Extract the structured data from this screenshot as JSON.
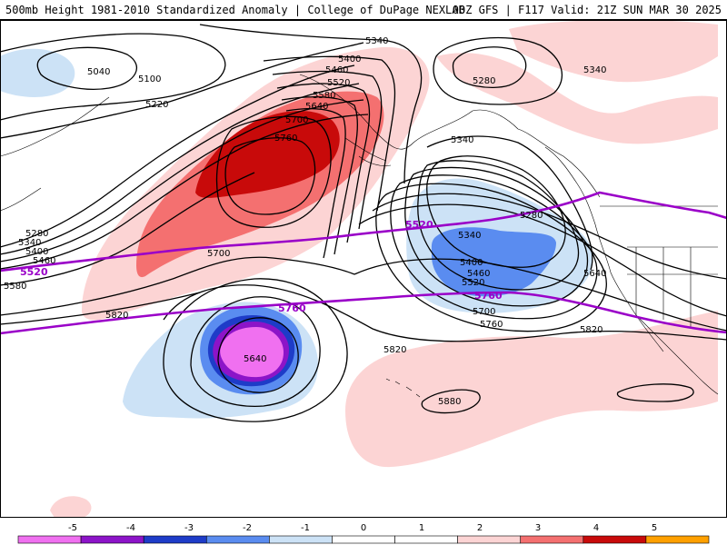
{
  "header": {
    "left_title": "500mb Height 1981-2010 Standardized Anomaly | College of DuPage NEXLAB",
    "right_title": "00Z GFS | F117 Valid: 21Z SUN MAR 30 2025"
  },
  "colors": {
    "anom_pos_1": "#fcd4d4",
    "anom_pos_2": "#f47070",
    "anom_pos_3": "#c80a0a",
    "anom_neg_1": "#cce2f6",
    "anom_neg_2": "#5a8cf0",
    "anom_neg_3": "#1e3cc8",
    "anom_neg_4": "#8c14c8",
    "anom_neg_5": "#f070f0",
    "contour": "#000000",
    "ref_contour": "#9a00c8"
  },
  "contour_labels": {
    "c5040": "5040",
    "c5100": "5100",
    "c5220": "5220",
    "c5340_top": "5340",
    "c5400_top": "5400",
    "c5460_top": "5460",
    "c5520_top": "5520",
    "c5580_top": "5580",
    "c5640_top": "5640",
    "c5700_top": "5700",
    "c5760_top": "5760",
    "c5280_alaska": "5280",
    "c5340_ak": "5340",
    "c5340_gulf": "5340",
    "c5280_left": "5280",
    "c5340_left": "5340",
    "c5400_left": "5400",
    "c5460_left": "5460",
    "c5580_left": "5580",
    "c5700_mid": "5700",
    "c5280_east": "5280",
    "c5340_east": "5340",
    "c5400_east": "5400",
    "c5460_east": "5460",
    "c5520_east": "5520",
    "c5640_east": "5640",
    "c5700_east": "5700",
    "c5760_east": "5760",
    "c5820_left": "5820",
    "c5820_mid": "5820",
    "c5820_right": "5820",
    "c5640_low": "5640",
    "c5880": "5880",
    "ref5520_left": "5520",
    "ref5520_mid": "5520",
    "ref5760_left": "5760",
    "ref5760_mid": "5760"
  },
  "colorbar": {
    "ticks": [
      "-5",
      "-4",
      "-3",
      "-2",
      "-1",
      "0",
      "1",
      "2",
      "3",
      "4",
      "5"
    ],
    "segment_colors": [
      "#f070f0",
      "#8c14c8",
      "#1e3cc8",
      "#5a8cf0",
      "#cce2f6",
      "#ffffff",
      "#ffffff",
      "#fcd4d4",
      "#f47070",
      "#c80a0a",
      "#ffa000"
    ]
  }
}
